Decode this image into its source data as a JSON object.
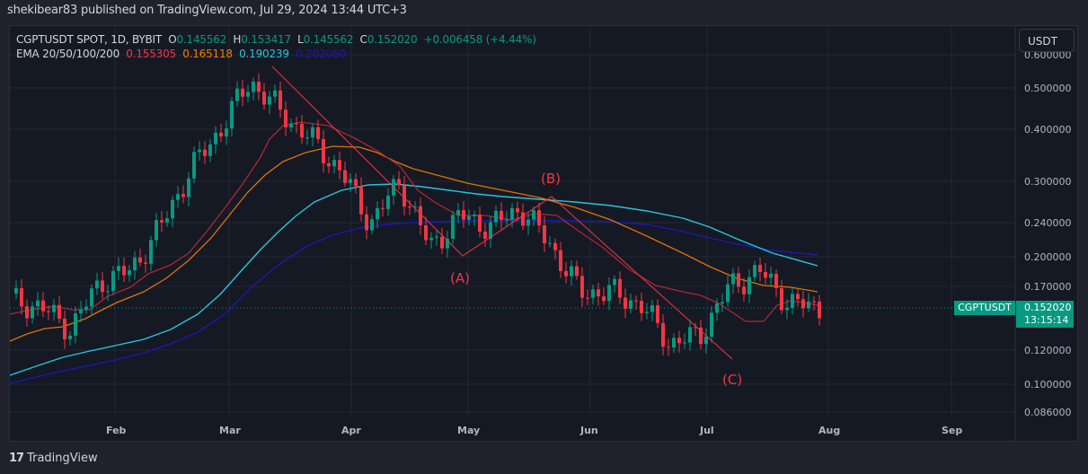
{
  "header": {
    "publish_line": "shekibear83 published on TradingView.com, Jul 29, 2024 13:44 UTC+3"
  },
  "legend": {
    "symbol_line": "CGPTUSDT SPOT, 1D, BYBIT",
    "o_label": "O",
    "o_value": "0.145562",
    "h_label": "H",
    "h_value": "0.153417",
    "l_label": "L",
    "l_value": "0.145562",
    "c_label": "C",
    "c_value": "0.152020",
    "change": "+0.006458 (+4.44%)",
    "ema_label": "EMA 20/50/100/200",
    "ema20": "0.155305",
    "ema50": "0.165118",
    "ema100": "0.190239",
    "ema200": "0.202060"
  },
  "currency_button": "USDT",
  "price_tag": {
    "symbol": "CGPTUSDT",
    "price": "0.152020",
    "countdown": "13:15:14"
  },
  "footer": {
    "logo_mark": "17",
    "brand": "TradingView"
  },
  "colors": {
    "up": "#089981",
    "down": "#f23645",
    "ema20": "#b22833",
    "ema50": "#f57c00",
    "ema100": "#26c6da",
    "ema200": "#1a1ab0",
    "wave": "#f23645",
    "background": "#151924"
  },
  "chart_data": {
    "type": "candlestick",
    "title": "CGPTUSDT SPOT, 1D, BYBIT",
    "scale": "log",
    "xlabel": "",
    "ylabel": "USDT",
    "x_ticks": [
      "Feb",
      "Mar",
      "Apr",
      "May",
      "Jun",
      "Jul",
      "Aug",
      "Sep"
    ],
    "y_ticks": [
      "0.600000",
      "0.500000",
      "0.400000",
      "0.300000",
      "0.240000",
      "0.200000",
      "0.170000",
      "0.120000",
      "0.100000",
      "0.086000"
    ],
    "ylim": [
      0.082,
      0.62
    ],
    "last_ohlc": {
      "open": 0.145562,
      "high": 0.153417,
      "low": 0.145562,
      "close": 0.15202,
      "change": 0.006458,
      "change_pct": 4.44
    },
    "ema_latest": {
      "EMA20": 0.155305,
      "EMA50": 0.165118,
      "EMA100": 0.190239,
      "EMA200": 0.20206
    },
    "approx_price_path": [
      {
        "date": "Jan 8",
        "close": 0.158
      },
      {
        "date": "Jan 20",
        "close": 0.152
      },
      {
        "date": "Jan 27",
        "close": 0.135
      },
      {
        "date": "Feb 1",
        "close": 0.175
      },
      {
        "date": "Feb 10",
        "close": 0.185
      },
      {
        "date": "Feb 20",
        "close": 0.235
      },
      {
        "date": "Feb 28",
        "close": 0.32
      },
      {
        "date": "Mar 5",
        "close": 0.4
      },
      {
        "date": "Mar 12",
        "close": 0.52
      },
      {
        "date": "Mar 20",
        "close": 0.44
      },
      {
        "date": "Apr 1",
        "close": 0.38
      },
      {
        "date": "Apr 10",
        "close": 0.32
      },
      {
        "date": "Apr 15",
        "close": 0.24
      },
      {
        "date": "Apr 22",
        "close": 0.3
      },
      {
        "date": "Apr 30",
        "close": 0.21
      },
      {
        "date": "May 8",
        "close": 0.25
      },
      {
        "date": "May 15",
        "close": 0.235
      },
      {
        "date": "May 22",
        "close": 0.26
      },
      {
        "date": "Jun 1",
        "close": 0.215
      },
      {
        "date": "Jun 10",
        "close": 0.165
      },
      {
        "date": "Jun 20",
        "close": 0.165
      },
      {
        "date": "Jul 1",
        "close": 0.155
      },
      {
        "date": "Jul 6",
        "close": 0.125
      },
      {
        "date": "Jul 12",
        "close": 0.13
      },
      {
        "date": "Jul 18",
        "close": 0.17
      },
      {
        "date": "Jul 21",
        "close": 0.185
      },
      {
        "date": "Jul 25",
        "close": 0.155
      },
      {
        "date": "Jul 29",
        "close": 0.152
      }
    ],
    "annotations": [
      {
        "label": "(A)",
        "approx_date": "Apr 30",
        "approx_price": 0.2
      },
      {
        "label": "(B)",
        "approx_date": "May 24",
        "approx_price": 0.275
      },
      {
        "label": "(C)",
        "approx_date": "Jul 8",
        "approx_price": 0.115
      }
    ],
    "abc_wave_lines": [
      {
        "from": {
          "date": "Mar 12",
          "price": 0.55
        },
        "to": {
          "date": "Apr 30",
          "price": 0.2
        }
      },
      {
        "from": {
          "date": "Apr 30",
          "price": 0.2
        },
        "to": {
          "date": "May 24",
          "price": 0.275
        }
      },
      {
        "from": {
          "date": "May 24",
          "price": 0.275
        },
        "to": {
          "date": "Jul 8",
          "price": 0.115
        }
      }
    ],
    "series": [
      {
        "name": "EMA20",
        "color": "#b22833"
      },
      {
        "name": "EMA50",
        "color": "#f57c00"
      },
      {
        "name": "EMA100",
        "color": "#26c6da"
      },
      {
        "name": "EMA200",
        "color": "#1a1ab0"
      }
    ]
  }
}
